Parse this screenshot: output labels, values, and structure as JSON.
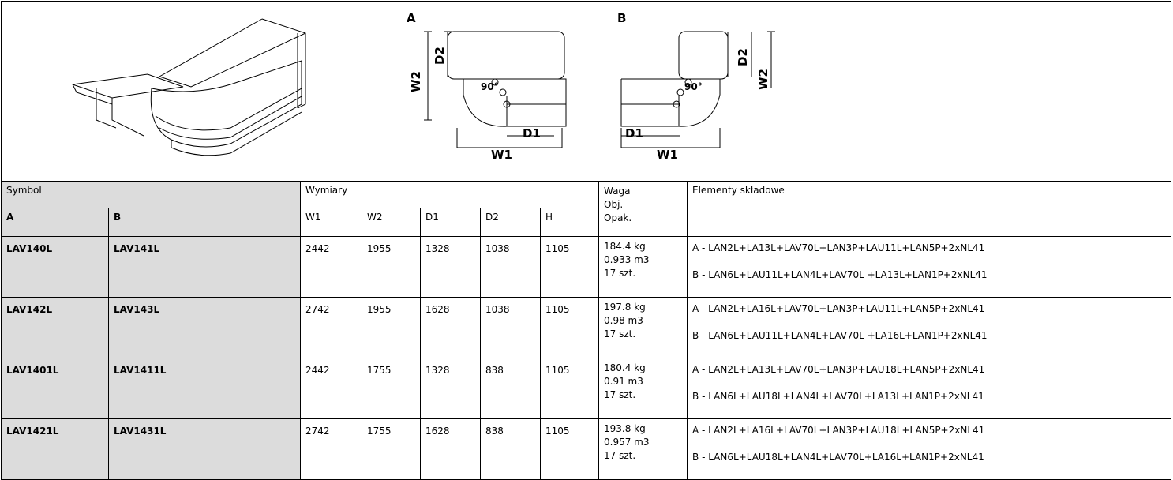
{
  "drawing": {
    "variant_a": {
      "label": "A",
      "d1": "D1",
      "d2": "D2",
      "w1": "W1",
      "w2": "W2",
      "angle": "90°"
    },
    "variant_b": {
      "label": "B",
      "d1": "D1",
      "d2": "D2",
      "w1": "W1",
      "w2": "W2",
      "angle": "90°"
    }
  },
  "table": {
    "header": {
      "symbol": "Symbol",
      "a": "A",
      "b": "B",
      "dimensions": "Wymiary",
      "dims": [
        "W1",
        "W2",
        "D1",
        "D2",
        "H"
      ],
      "weight": [
        "Waga",
        "Obj.",
        "Opak."
      ],
      "elements": "Elementy składowe"
    },
    "rows": [
      {
        "a": "LAV140L",
        "b": "LAV141L",
        "dims": [
          "2442",
          "1955",
          "1328",
          "1038",
          "1105"
        ],
        "info": [
          "184.4 kg",
          "0.933 m3",
          "17 szt."
        ],
        "elements": [
          "A - LAN2L+LA13L+LAV70L+LAN3P+LAU11L+LAN5P+2xNL41",
          "B - LAN6L+LAU11L+LAN4L+LAV70L +LA13L+LAN1P+2xNL41"
        ]
      },
      {
        "a": "LAV142L",
        "b": "LAV143L",
        "dims": [
          "2742",
          "1955",
          "1628",
          "1038",
          "1105"
        ],
        "info": [
          "197.8 kg",
          "0.98 m3",
          "17 szt."
        ],
        "elements": [
          "A - LAN2L+LA16L+LAV70L+LAN3P+LAU11L+LAN5P+2xNL41",
          "B - LAN6L+LAU11L+LAN4L+LAV70L +LA16L+LAN1P+2xNL41"
        ]
      },
      {
        "a": "LAV1401L",
        "b": "LAV1411L",
        "dims": [
          "2442",
          "1755",
          "1328",
          "838",
          "1105"
        ],
        "info": [
          "180.4 kg",
          "0.91 m3",
          "17 szt."
        ],
        "elements": [
          "A - LAN2L+LA13L+LAV70L+LAN3P+LAU18L+LAN5P+2xNL41",
          "B - LAN6L+LAU18L+LAN4L+LAV70L+LA13L+LAN1P+2xNL41"
        ]
      },
      {
        "a": "LAV1421L",
        "b": "LAV1431L",
        "dims": [
          "2742",
          "1755",
          "1628",
          "838",
          "1105"
        ],
        "info": [
          "193.8 kg",
          "0.957 m3",
          "17 szt."
        ],
        "elements": [
          "A - LAN2L+LA16L+LAV70L+LAN3P+LAU18L+LAN5P+2xNL41",
          "B - LAN6L+LAU18L+LAN4L+LAV70L+LA16L+LAN1P+2xNL41"
        ]
      }
    ]
  }
}
